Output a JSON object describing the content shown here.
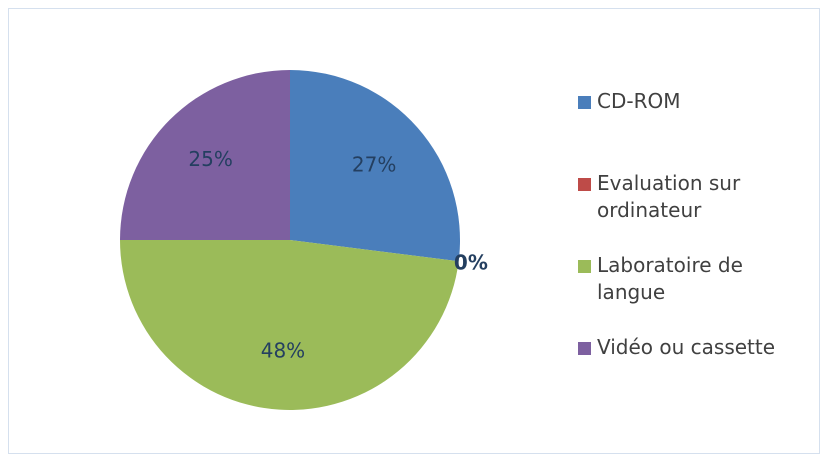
{
  "chart_data": {
    "type": "pie",
    "categories": [
      "CD-ROM",
      "Evaluation sur ordinateur",
      "Laboratoire de langue",
      "Vidéo ou cassette"
    ],
    "values": [
      27,
      0,
      48,
      25
    ],
    "value_labels": [
      "27%",
      "0%",
      "48%",
      "25%"
    ],
    "colors": [
      "#4a7ebb",
      "#be4b48",
      "#9bbb59",
      "#7d60a0"
    ],
    "legend": "right"
  }
}
